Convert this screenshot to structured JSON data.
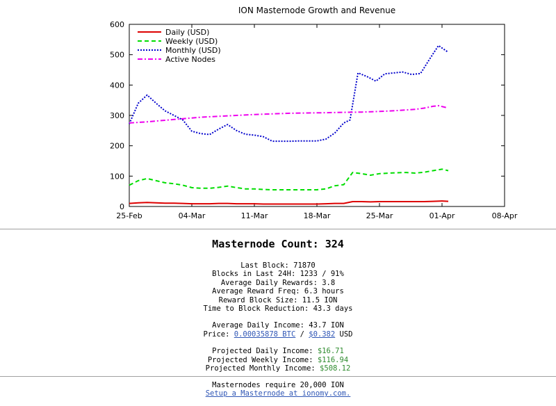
{
  "chart_data": {
    "type": "line",
    "title": "ION Masternode Growth and Revenue",
    "xlabel": "",
    "ylabel": "",
    "ylim": [
      0,
      600
    ],
    "yticks": [
      0,
      100,
      200,
      300,
      400,
      500,
      600
    ],
    "x_domain_days": [
      0,
      42
    ],
    "xticks": [
      {
        "day": 0,
        "label": "25-Feb"
      },
      {
        "day": 7,
        "label": "04-Mar"
      },
      {
        "day": 14,
        "label": "11-Mar"
      },
      {
        "day": 21,
        "label": "18-Mar"
      },
      {
        "day": 28,
        "label": "25-Mar"
      },
      {
        "day": 35,
        "label": "01-Apr"
      },
      {
        "day": 42,
        "label": "08-Apr"
      }
    ],
    "grid": false,
    "legend_position": "top-left",
    "series": [
      {
        "name": "Daily (USD)",
        "color": "#dd0000",
        "style": "solid",
        "points": [
          [
            0,
            10
          ],
          [
            1,
            12
          ],
          [
            2,
            13
          ],
          [
            3,
            12
          ],
          [
            4,
            11
          ],
          [
            5,
            11
          ],
          [
            6,
            10
          ],
          [
            7,
            9
          ],
          [
            8,
            9
          ],
          [
            9,
            9
          ],
          [
            10,
            10
          ],
          [
            11,
            10
          ],
          [
            12,
            9
          ],
          [
            13,
            9
          ],
          [
            14,
            9
          ],
          [
            15,
            8
          ],
          [
            16,
            8
          ],
          [
            17,
            8
          ],
          [
            18,
            8
          ],
          [
            19,
            8
          ],
          [
            20,
            8
          ],
          [
            21,
            8
          ],
          [
            22,
            9
          ],
          [
            23,
            10
          ],
          [
            24,
            10
          ],
          [
            25,
            16
          ],
          [
            26,
            16
          ],
          [
            27,
            15
          ],
          [
            28,
            16
          ],
          [
            29,
            16
          ],
          [
            30,
            16
          ],
          [
            31,
            16
          ],
          [
            32,
            16
          ],
          [
            33,
            16
          ],
          [
            34,
            17
          ],
          [
            35,
            18
          ],
          [
            35.7,
            17
          ]
        ]
      },
      {
        "name": "Weekly (USD)",
        "color": "#00dd00",
        "style": "dashed",
        "points": [
          [
            0,
            70
          ],
          [
            1,
            85
          ],
          [
            2,
            92
          ],
          [
            3,
            85
          ],
          [
            4,
            78
          ],
          [
            5,
            75
          ],
          [
            6,
            70
          ],
          [
            7,
            62
          ],
          [
            8,
            60
          ],
          [
            9,
            60
          ],
          [
            10,
            63
          ],
          [
            11,
            67
          ],
          [
            12,
            62
          ],
          [
            13,
            58
          ],
          [
            14,
            58
          ],
          [
            15,
            56
          ],
          [
            16,
            55
          ],
          [
            17,
            55
          ],
          [
            18,
            55
          ],
          [
            19,
            55
          ],
          [
            20,
            55
          ],
          [
            21,
            55
          ],
          [
            22,
            58
          ],
          [
            23,
            68
          ],
          [
            24,
            72
          ],
          [
            25,
            112
          ],
          [
            26,
            108
          ],
          [
            27,
            103
          ],
          [
            28,
            108
          ],
          [
            29,
            110
          ],
          [
            30,
            111
          ],
          [
            31,
            112
          ],
          [
            32,
            110
          ],
          [
            33,
            113
          ],
          [
            34,
            118
          ],
          [
            35,
            123
          ],
          [
            35.7,
            118
          ]
        ]
      },
      {
        "name": "Monthly (USD)",
        "color": "#0000cc",
        "style": "dotted",
        "points": [
          [
            0,
            272
          ],
          [
            1,
            340
          ],
          [
            2,
            367
          ],
          [
            3,
            340
          ],
          [
            4,
            315
          ],
          [
            5,
            300
          ],
          [
            6,
            285
          ],
          [
            7,
            248
          ],
          [
            8,
            240
          ],
          [
            9,
            237
          ],
          [
            10,
            255
          ],
          [
            11,
            270
          ],
          [
            12,
            250
          ],
          [
            13,
            238
          ],
          [
            14,
            235
          ],
          [
            15,
            230
          ],
          [
            16,
            215
          ],
          [
            17,
            215
          ],
          [
            18,
            215
          ],
          [
            19,
            216
          ],
          [
            20,
            216
          ],
          [
            21,
            216
          ],
          [
            22,
            222
          ],
          [
            23,
            242
          ],
          [
            24,
            275
          ],
          [
            24.7,
            285
          ],
          [
            25.6,
            440
          ],
          [
            26.6,
            428
          ],
          [
            27.6,
            413
          ],
          [
            28.6,
            437
          ],
          [
            29.6,
            440
          ],
          [
            30.6,
            443
          ],
          [
            31.6,
            435
          ],
          [
            32.6,
            438
          ],
          [
            33.6,
            485
          ],
          [
            34.6,
            530
          ],
          [
            35.6,
            510
          ]
        ]
      },
      {
        "name": "Active Nodes",
        "color": "#ee00ee",
        "style": "dashdot",
        "points": [
          [
            0,
            275
          ],
          [
            2,
            279
          ],
          [
            4,
            284
          ],
          [
            6,
            289
          ],
          [
            8,
            294
          ],
          [
            10,
            297
          ],
          [
            12,
            300
          ],
          [
            14,
            303
          ],
          [
            16,
            305
          ],
          [
            18,
            307
          ],
          [
            20,
            308
          ],
          [
            22,
            309
          ],
          [
            24,
            310
          ],
          [
            26,
            311
          ],
          [
            28,
            313
          ],
          [
            30,
            316
          ],
          [
            32,
            320
          ],
          [
            33,
            324
          ],
          [
            34,
            330
          ],
          [
            34.6,
            332
          ],
          [
            35.6,
            325
          ]
        ]
      }
    ]
  },
  "stats": {
    "masternode_count": "Masternode Count: 324",
    "last_block": "Last Block: 71870",
    "blocks_24h": "Blocks in Last 24H: 1233 / 91%",
    "avg_daily_rewards": "Average Daily Rewards: 3.8",
    "avg_reward_freq": "Average Reward Freq: 6.3 hours",
    "reward_block_size": "Reward Block Size: 11.5 ION",
    "time_to_reduction": "Time to Block Reduction: 43.3 days",
    "avg_daily_income": "Average Daily Income: 43.7 ION",
    "price_label": "Price: ",
    "price_btc": "0.00035878 BTC",
    "price_sep": " / ",
    "price_usd": "$0.382",
    "price_usd_unit": " USD",
    "proj_daily_label": "Projected Daily Income: ",
    "proj_daily_value": "$16.71",
    "proj_weekly_label": "Projected Weekly Income: ",
    "proj_weekly_value": "$116.94",
    "proj_monthly_label": "Projected Monthly Income: ",
    "proj_monthly_value": "$508.12"
  },
  "footer": {
    "requirement": "Masternodes require 20,000 ION",
    "setup_link": "Setup a Masternode at ionomy.com."
  }
}
